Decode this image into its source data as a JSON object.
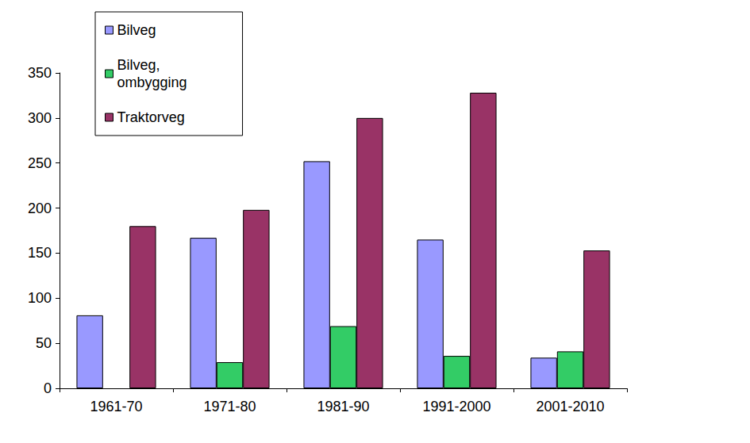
{
  "chart_data": {
    "type": "bar",
    "categories": [
      "1961-70",
      "1971-80",
      "1981-90",
      "1991-2000",
      "2001-2010"
    ],
    "series": [
      {
        "name": "Bilveg",
        "color": "#9999ff",
        "values": [
          81,
          167,
          252,
          165,
          34
        ]
      },
      {
        "name": "Bilveg,\nombygging",
        "color": "#33cc66",
        "values": [
          null,
          29,
          69,
          36,
          41
        ]
      },
      {
        "name": "Traktorveg",
        "color": "#993366",
        "values": [
          180,
          198,
          300,
          328,
          153
        ]
      }
    ],
    "ylim": [
      0,
      350
    ],
    "yticks": [
      0,
      50,
      100,
      150,
      200,
      250,
      300,
      350
    ],
    "grid": false,
    "legend": "top-left"
  }
}
